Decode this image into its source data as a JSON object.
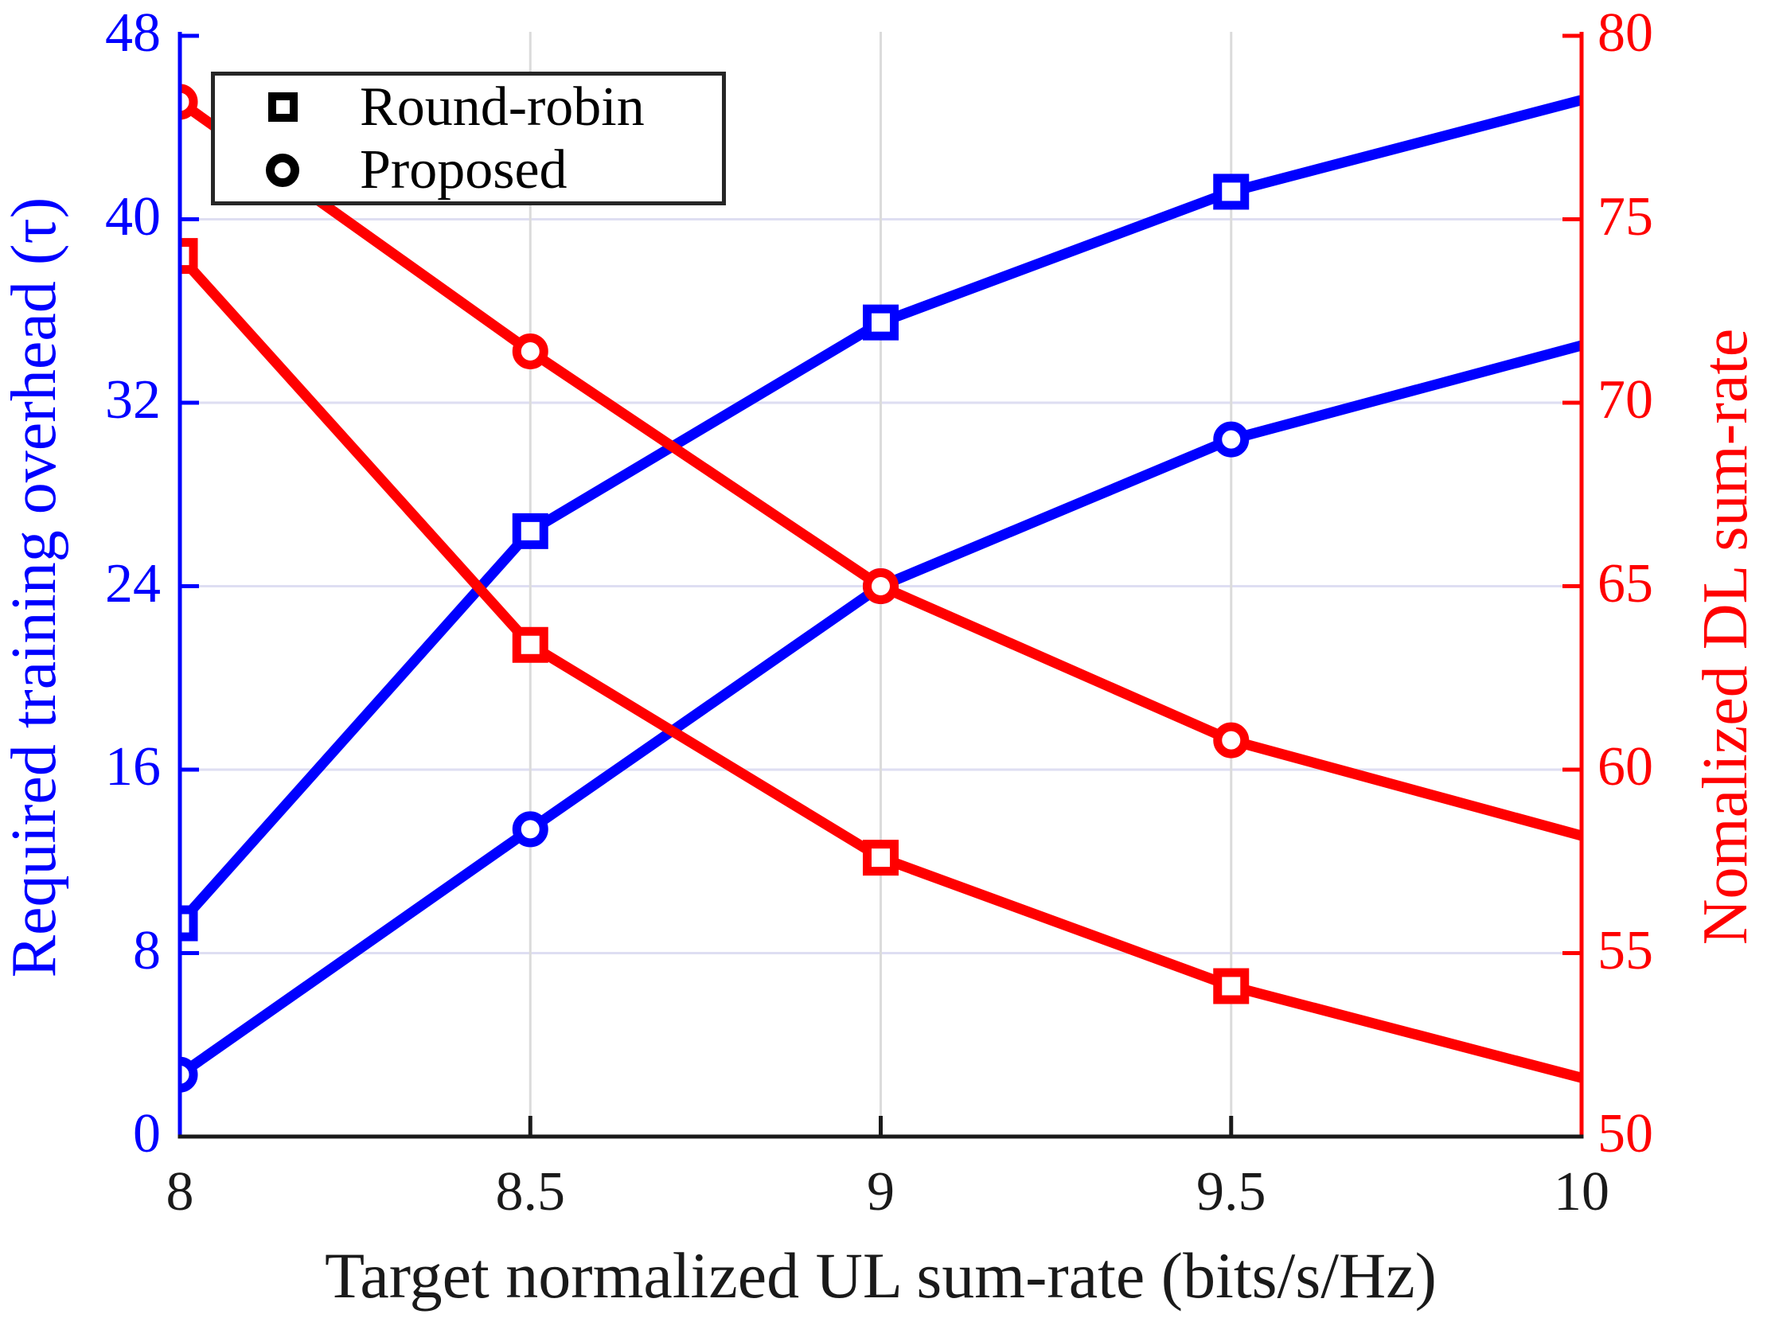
{
  "chart_data": {
    "type": "line",
    "x": [
      8,
      8.5,
      9,
      9.5,
      10
    ],
    "x_tick_labels": [
      "8",
      "8.5",
      "9",
      "9.5",
      "10"
    ],
    "xlim": [
      8,
      10
    ],
    "y_left_ticks": [
      0,
      8,
      16,
      24,
      32,
      40,
      48
    ],
    "ylim_left": [
      0,
      48
    ],
    "y_right_ticks": [
      50,
      55,
      60,
      65,
      70,
      75,
      80
    ],
    "ylim_right": [
      50,
      80
    ],
    "grid": true,
    "xlabel": "Target normalized UL sum-rate (bits/s/Hz)",
    "ylabel_left": "Required training overhead (τ)",
    "ylabel_right": "Nomalized DL sum-rate",
    "series": [
      {
        "name": "Round-robin",
        "axis": "left",
        "color": "#0000ff",
        "marker": "square",
        "values": [
          9.3,
          26.4,
          35.5,
          41.2,
          45.2
        ]
      },
      {
        "name": "Proposed",
        "axis": "left",
        "color": "#0000ff",
        "marker": "circle",
        "values": [
          2.7,
          13.4,
          24.0,
          30.4,
          34.5
        ]
      },
      {
        "name": "Round-robin",
        "axis": "right",
        "color": "#ff0000",
        "marker": "square",
        "values": [
          74.0,
          63.4,
          57.6,
          54.1,
          51.6
        ]
      },
      {
        "name": "Proposed",
        "axis": "right",
        "color": "#ff0000",
        "marker": "circle",
        "values": [
          78.2,
          71.4,
          65.0,
          60.8,
          58.2
        ]
      }
    ],
    "legend": {
      "position": "top-left",
      "entries": [
        {
          "marker": "square",
          "label": "Round-robin"
        },
        {
          "marker": "circle",
          "label": "Proposed"
        }
      ]
    },
    "colors": {
      "left_axis": "#0000ff",
      "right_axis": "#ff0000",
      "x_axis": "#1a1a1a",
      "grid_horizontal": "#dedef2",
      "grid_vertical": "#dbdbdb",
      "legend_marker": "#000000",
      "background": "#ffffff"
    }
  }
}
